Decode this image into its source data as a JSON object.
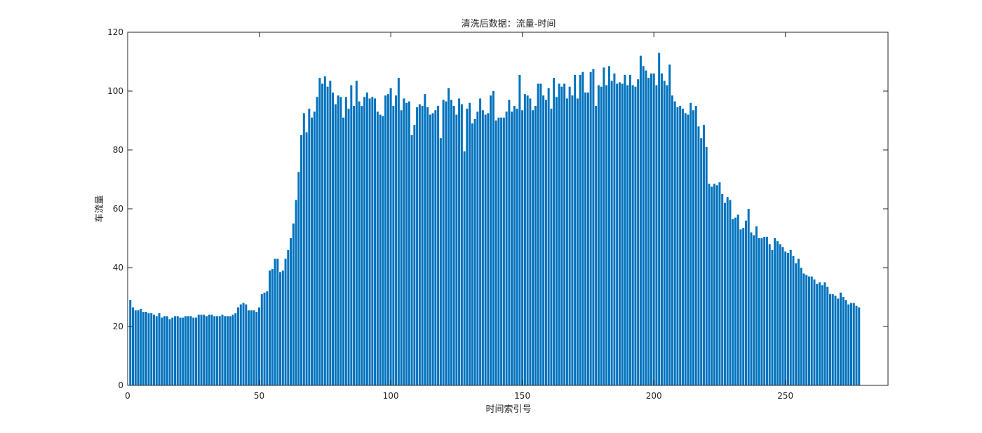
{
  "chart_data": {
    "type": "bar",
    "title": "清洗后数据：流量-时间",
    "xlabel": "时间索引号",
    "ylabel": "车流量",
    "xlim": [
      0,
      289
    ],
    "ylim": [
      0,
      120
    ],
    "xticks": [
      0,
      50,
      100,
      150,
      200,
      250
    ],
    "yticks": [
      0,
      20,
      40,
      60,
      80,
      100,
      120
    ],
    "grid": false,
    "bar_color": "#0072BD",
    "x_start": 1,
    "values": [
      29,
      26.5,
      25.5,
      25.5,
      26,
      25,
      25,
      24.5,
      24.5,
      24,
      23.5,
      24.5,
      23,
      23.5,
      23.5,
      22.5,
      23,
      23.5,
      23.5,
      23,
      23,
      23.5,
      23.5,
      23.5,
      23,
      23,
      24,
      24,
      24,
      23.5,
      24,
      24,
      23.5,
      23.5,
      23.5,
      24,
      23.5,
      23.5,
      23.5,
      24,
      24.5,
      26.5,
      27.5,
      28,
      27.5,
      25.5,
      25.5,
      25.5,
      25,
      26.5,
      31,
      31.5,
      32,
      39,
      39.5,
      43,
      43,
      38.5,
      39,
      43,
      46,
      50,
      55,
      63,
      72.5,
      85,
      92.5,
      86,
      94,
      91,
      93,
      98,
      104.5,
      102.5,
      105,
      101.5,
      103.5,
      99.5,
      95.5,
      98.5,
      98,
      91,
      98,
      94,
      102,
      95,
      103.5,
      96.5,
      95,
      98,
      99.5,
      97.5,
      98,
      97.5,
      93,
      92,
      91.5,
      98.5,
      99,
      101,
      95,
      98.5,
      104.5,
      93.5,
      97.5,
      96,
      96.5,
      85,
      88.5,
      94.5,
      95.5,
      95,
      99,
      94.5,
      92,
      92.5,
      93.5,
      95,
      84,
      97,
      96.5,
      101,
      97,
      95,
      92,
      97.5,
      95.5,
      79.5,
      94,
      96,
      89,
      90.5,
      93,
      97.5,
      93.5,
      92,
      92.5,
      98.5,
      100,
      90,
      91,
      91,
      91,
      93,
      97,
      93,
      95,
      94,
      105.5,
      93.5,
      99,
      98.5,
      97.5,
      93.5,
      95,
      102.5,
      102.5,
      98.5,
      97,
      101,
      94,
      104.5,
      98,
      102.5,
      101.5,
      102.5,
      97.5,
      101.5,
      98.5,
      105.5,
      97.5,
      105.5,
      106.5,
      99.5,
      99.5,
      106.5,
      107.5,
      95,
      102,
      101.5,
      108,
      102,
      108.5,
      103.5,
      106,
      102.5,
      103,
      102.5,
      105.5,
      102,
      105.5,
      102,
      101.5,
      104,
      112,
      108.5,
      107,
      104.5,
      106,
      106,
      102,
      113,
      106,
      103.5,
      102,
      109,
      98.5,
      96.5,
      94.5,
      95,
      94,
      92.5,
      92,
      96,
      93.5,
      95,
      88,
      84,
      88.5,
      81,
      68.5,
      67.5,
      68.5,
      68,
      69,
      65,
      62,
      64,
      63,
      56.5,
      57,
      58,
      53,
      53.5,
      56,
      60,
      52,
      51,
      54,
      50,
      50,
      50.5,
      50.5,
      48,
      46,
      50,
      49,
      48,
      47,
      45.5,
      45,
      46,
      44,
      41.5,
      43,
      40,
      38,
      37.5,
      37,
      37,
      36,
      34.5,
      35,
      34,
      35,
      33.5,
      31,
      31,
      30.5,
      29.5,
      31.5,
      30,
      29,
      27.5,
      28,
      28,
      27,
      26.5
    ]
  }
}
